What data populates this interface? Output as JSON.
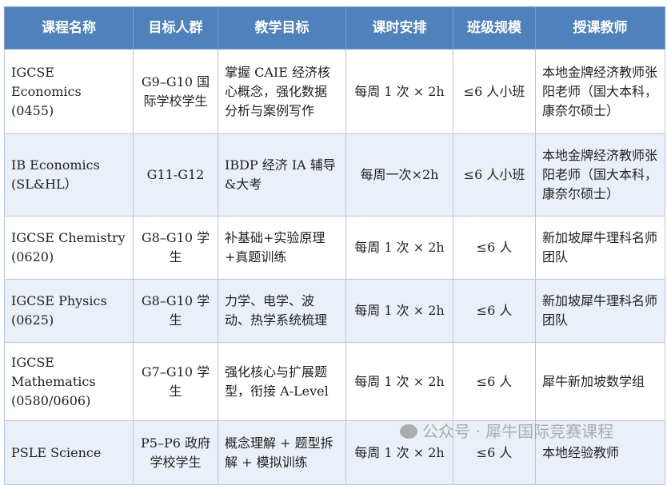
{
  "headers": [
    "课程名称",
    "目标人群",
    "教学目标",
    "课时安排",
    "班级规模",
    "授课教师"
  ],
  "rows": [
    {
      "course": "IGCSE Economics (0455)",
      "audience": "G9–G10 国际学校学生",
      "goal": "掌握 CAIE 经济核心概念，强化数据分析与案例写作",
      "schedule": "每周 1 次 × 2h",
      "size": "≤6 人小班",
      "teacher": "本地金牌经济教师张阳老师（国大本科，康奈尔硕士）"
    },
    {
      "course": "IB Economics (SL&HL）",
      "audience": "G11-G12",
      "goal": "IBDP 经济 IA 辅导&大考",
      "schedule": "每周一次×2h",
      "size": "≤6 人小班",
      "teacher": "本地金牌经济教师张阳老师（国大本科，康奈尔硕士）"
    },
    {
      "course": "IGCSE Chemistry (0620)",
      "audience": "G8–G10 学生",
      "goal": "补基础+实验原理+真题训练",
      "schedule": "每周 1 次 × 2h",
      "size": "≤6 人",
      "teacher": "新加坡犀牛理科名师团队"
    },
    {
      "course": "IGCSE Physics (0625)",
      "audience": "G8–G10 学生",
      "goal": "力学、电学、波动、热学系统梳理",
      "schedule": "每周 1 次 × 2h",
      "size": "≤6 人",
      "teacher": "新加坡犀牛理科名师团队"
    },
    {
      "course": "IGCSE Mathematics (0580/0606)",
      "audience": "G7–G10 学生",
      "goal": "强化核心与扩展题型，衔接 A-Level",
      "schedule": "每周 1 次 × 2h",
      "size": "≤6 人",
      "teacher": "犀牛新加坡数学组"
    },
    {
      "course": "PSLE Science",
      "audience": "P5–P6 政府学校学生",
      "goal": "概念理解 + 题型拆解 + 模拟训练",
      "schedule": "每周 1 次 × 2h",
      "size": "≤6 人",
      "teacher": "本地经验教师"
    }
  ],
  "watermark": "公众号 · 犀牛国际竞赛课程",
  "colors": {
    "header": "#4f81bd",
    "alt_row": "#eaf0f8"
  }
}
